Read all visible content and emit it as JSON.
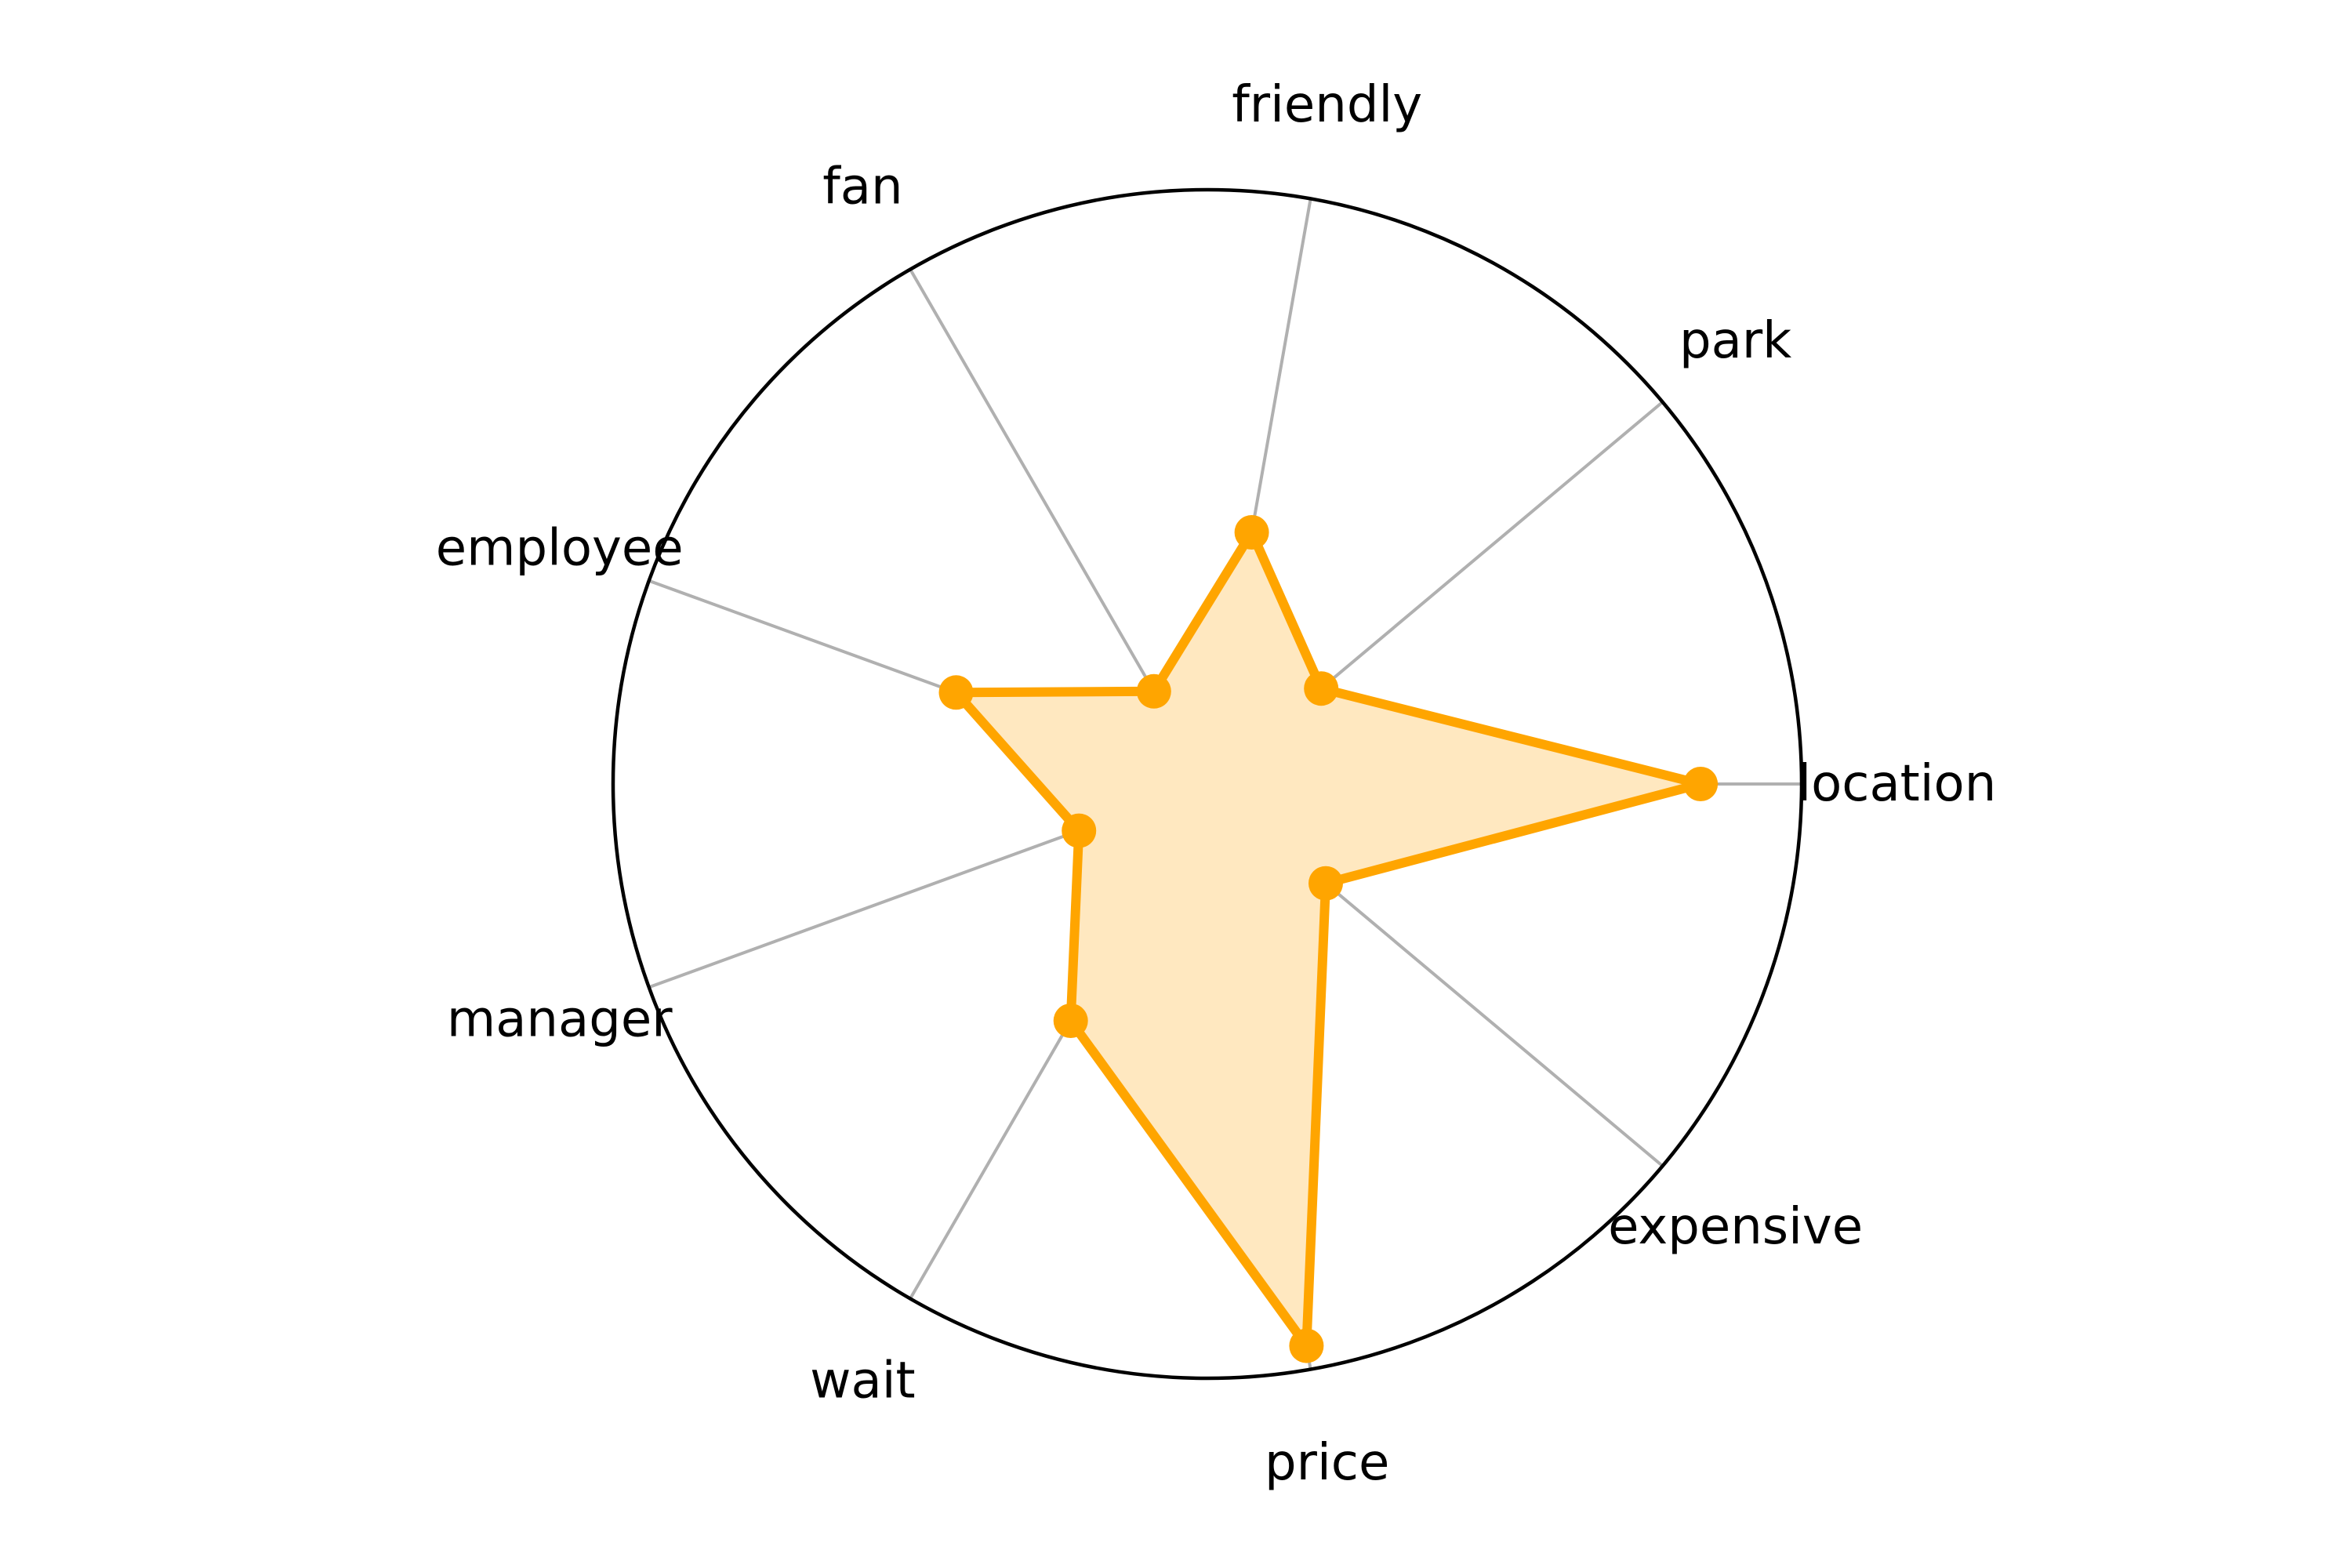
{
  "chart_data": {
    "type": "radar",
    "categories": [
      "location",
      "park",
      "friendly",
      "fan",
      "employee",
      "manager",
      "wait",
      "price",
      "expensive"
    ],
    "series": [
      {
        "values": [
          0.83,
          0.25,
          0.43,
          0.18,
          0.45,
          0.23,
          0.46,
          0.96,
          0.26
        ],
        "color": "#FFA500"
      }
    ],
    "rlim": [
      0,
      1
    ],
    "grid": true,
    "colors": {
      "series_line": "#FFA500",
      "series_fill": "#FFE8C0",
      "spokes": "#B0B0B0",
      "outer_ring": "#000000"
    }
  }
}
